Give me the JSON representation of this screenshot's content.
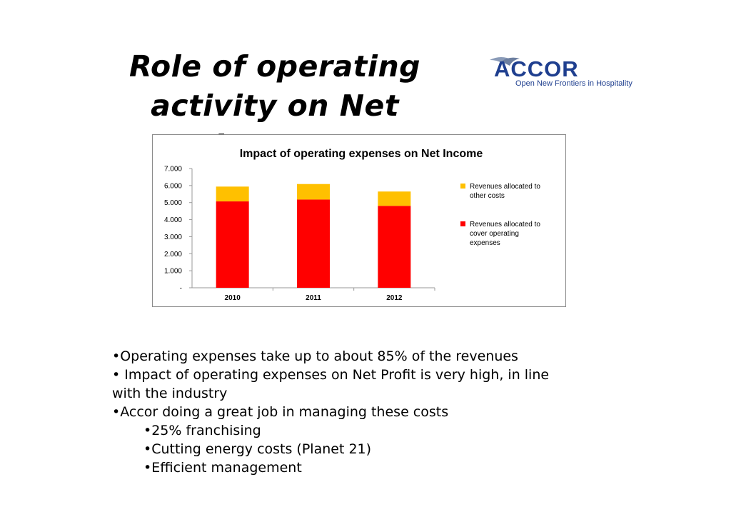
{
  "slide": {
    "title_line1": "Role of operating",
    "title_line2": "activity on Net Income"
  },
  "logo": {
    "name": "ACCOR",
    "tagline": "Open New Frontiers in Hospitality",
    "icon": "bird-icon",
    "color": "#1f3f8f"
  },
  "chart_data": {
    "type": "bar",
    "stacked": true,
    "title": "Impact of operating expenses on Net Income",
    "categories": [
      "2010",
      "2011",
      "2012"
    ],
    "series": [
      {
        "name": "Revenues allocated to cover operating expenses",
        "values": [
          5070,
          5180,
          4810
        ],
        "color": "#ff0000"
      },
      {
        "name": "Revenues allocated to other costs",
        "values": [
          870,
          910,
          840
        ],
        "color": "#ffc000"
      }
    ],
    "ylim": [
      0,
      7000
    ],
    "yticks": [
      "-",
      "1.000",
      "2.000",
      "3.000",
      "4.000",
      "5.000",
      "6.000",
      "7.000"
    ],
    "legend_position": "right",
    "legend_lines": [
      [
        "Revenues allocated to",
        "other costs"
      ],
      [
        "Revenues allocated to",
        "cover operating",
        "expenses"
      ]
    ],
    "grid": false
  },
  "bullets": [
    {
      "text": "•Operating expenses take up to about 85% of the revenues",
      "level": 0
    },
    {
      "text": "• Impact of operating expenses on Net Profit is very high, in line with the industry",
      "level": 0
    },
    {
      "text": "•Accor doing a great job in managing these costs",
      "level": 0
    },
    {
      "text": "•25% franchising",
      "level": 1
    },
    {
      "text": "•Cutting energy costs (Planet 21)",
      "level": 1
    },
    {
      "text": "•Efficient management",
      "level": 1
    }
  ]
}
